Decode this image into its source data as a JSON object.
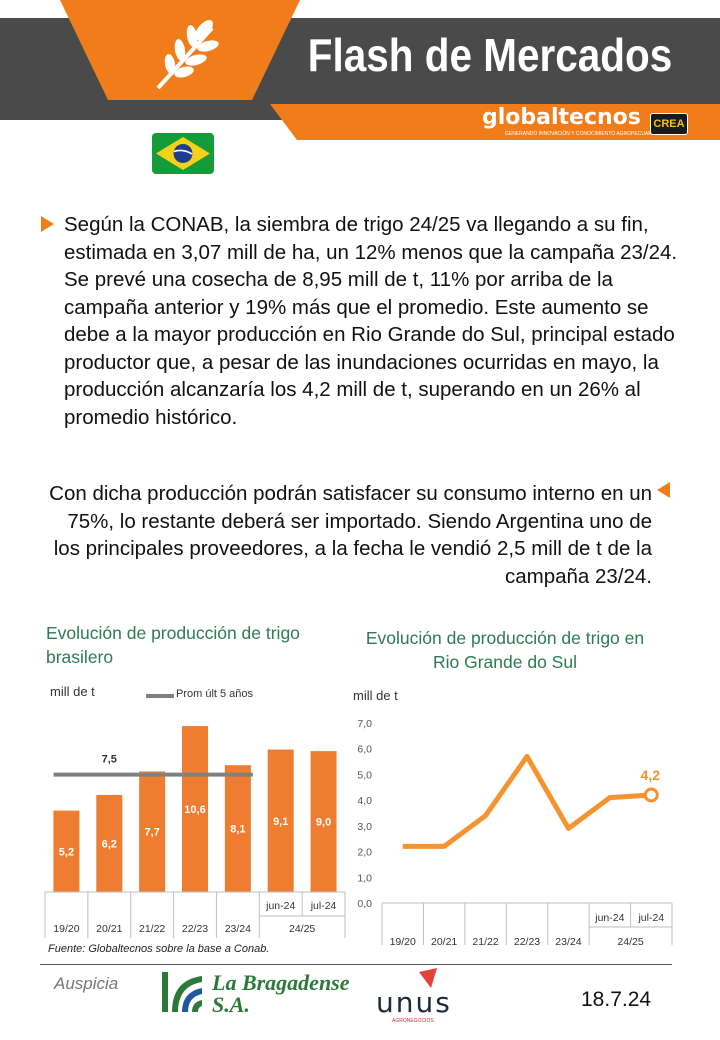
{
  "header": {
    "title": "Flash de Mercados",
    "brand": "globaltecnos",
    "brand_tagline": "GENERANDO INNOVACIÓN Y CONOCIMIENTO AGROPECUARIO",
    "partner_logo": "CREA",
    "icon": "wheat-icon",
    "country_flag": "brazil-flag-icon"
  },
  "body": {
    "paragraph_1": "Según la CONAB,  la siembra de trigo 24/25 va llegando a su fin, estimada en 3,07 mill de ha, un 12% menos que la campaña 23/24. Se prevé una cosecha de 8,95 mill de t, 11% por arriba de la campaña anterior y 19% más que el promedio. Este aumento se debe a la mayor producción en Rio Grande do Sul, principal estado productor que, a pesar de las inundaciones ocurridas en mayo, la producción alcanzaría los 4,2 mill de t, superando en un 26% al promedio histórico.",
    "paragraph_2": "Con dicha producción podrán satisfacer su consumo interno en un 75%, lo restante deberá ser importado. Siendo Argentina uno de los principales proveedores, a la fecha le vendió 2,5 mill de t de la campaña 23/24."
  },
  "chart_data": [
    {
      "type": "bar",
      "title": "Evolución de producción de trigo brasilero",
      "ylabel": "mill de t",
      "categories": [
        "19/20",
        "20/21",
        "21/22",
        "22/23",
        "23/24",
        "jun-24",
        "jul-24"
      ],
      "category_group": "24/25",
      "values": [
        5.2,
        6.2,
        7.7,
        10.6,
        8.1,
        9.1,
        9.0
      ],
      "value_labels": [
        "5,2",
        "6,2",
        "7,7",
        "10,6",
        "8,1",
        "9,1",
        "9,0"
      ],
      "reference_line": {
        "name": "Prom últ 5 años",
        "value": 7.5,
        "label": "7,5"
      },
      "colors": {
        "bars": "#ef7d31",
        "reference": "#808080"
      },
      "legend": "top"
    },
    {
      "type": "line",
      "title": "Evolución de producción de trigo en Rio Grande do Sul",
      "ylabel": "mill de t",
      "categories": [
        "19/20",
        "20/21",
        "21/22",
        "22/23",
        "23/24",
        "jun-24",
        "jul-24"
      ],
      "category_group": "24/25",
      "values": [
        2.2,
        2.2,
        3.4,
        5.7,
        2.9,
        4.1,
        4.2
      ],
      "ylim": [
        0,
        7
      ],
      "yticks": [
        "0,0",
        "1,0",
        "2,0",
        "3,0",
        "4,0",
        "5,0",
        "6,0",
        "7,0"
      ],
      "last_label": "4,2",
      "colors": {
        "line": "#f59331"
      }
    }
  ],
  "source": "Fuente: Globaltecnos sobre la base a Conab.",
  "footer": {
    "sponsor_label": "Auspicia",
    "sponsor_1": "La Bragadense S.A.",
    "sponsor_2": "UNUS",
    "sponsor_2_tagline": "AGRONEGOCIOS",
    "date": "18.7.24"
  }
}
